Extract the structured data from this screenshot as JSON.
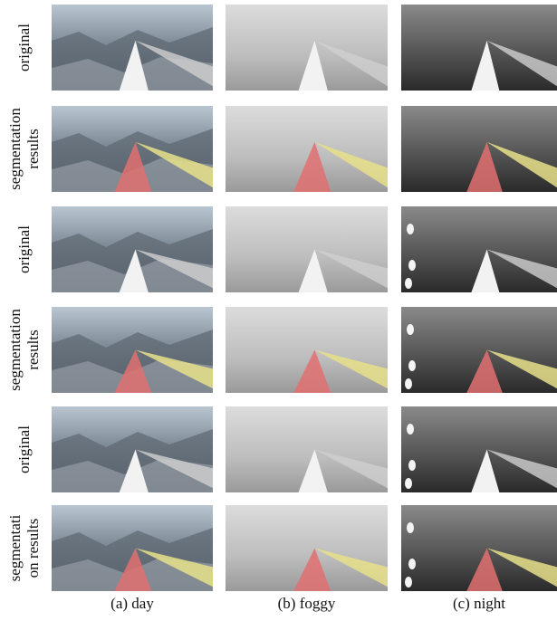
{
  "rows": [
    {
      "label": [
        "original"
      ]
    },
    {
      "label": [
        "segmentation",
        "results"
      ]
    },
    {
      "label": [
        "original"
      ]
    },
    {
      "label": [
        "segmentation",
        "results"
      ]
    },
    {
      "label": [
        "original"
      ]
    },
    {
      "label": [
        "segmentati",
        "on results"
      ]
    }
  ],
  "columns": [
    {
      "label": "(a) day"
    },
    {
      "label": "(b) foggy"
    },
    {
      "label": "(c) night"
    }
  ]
}
